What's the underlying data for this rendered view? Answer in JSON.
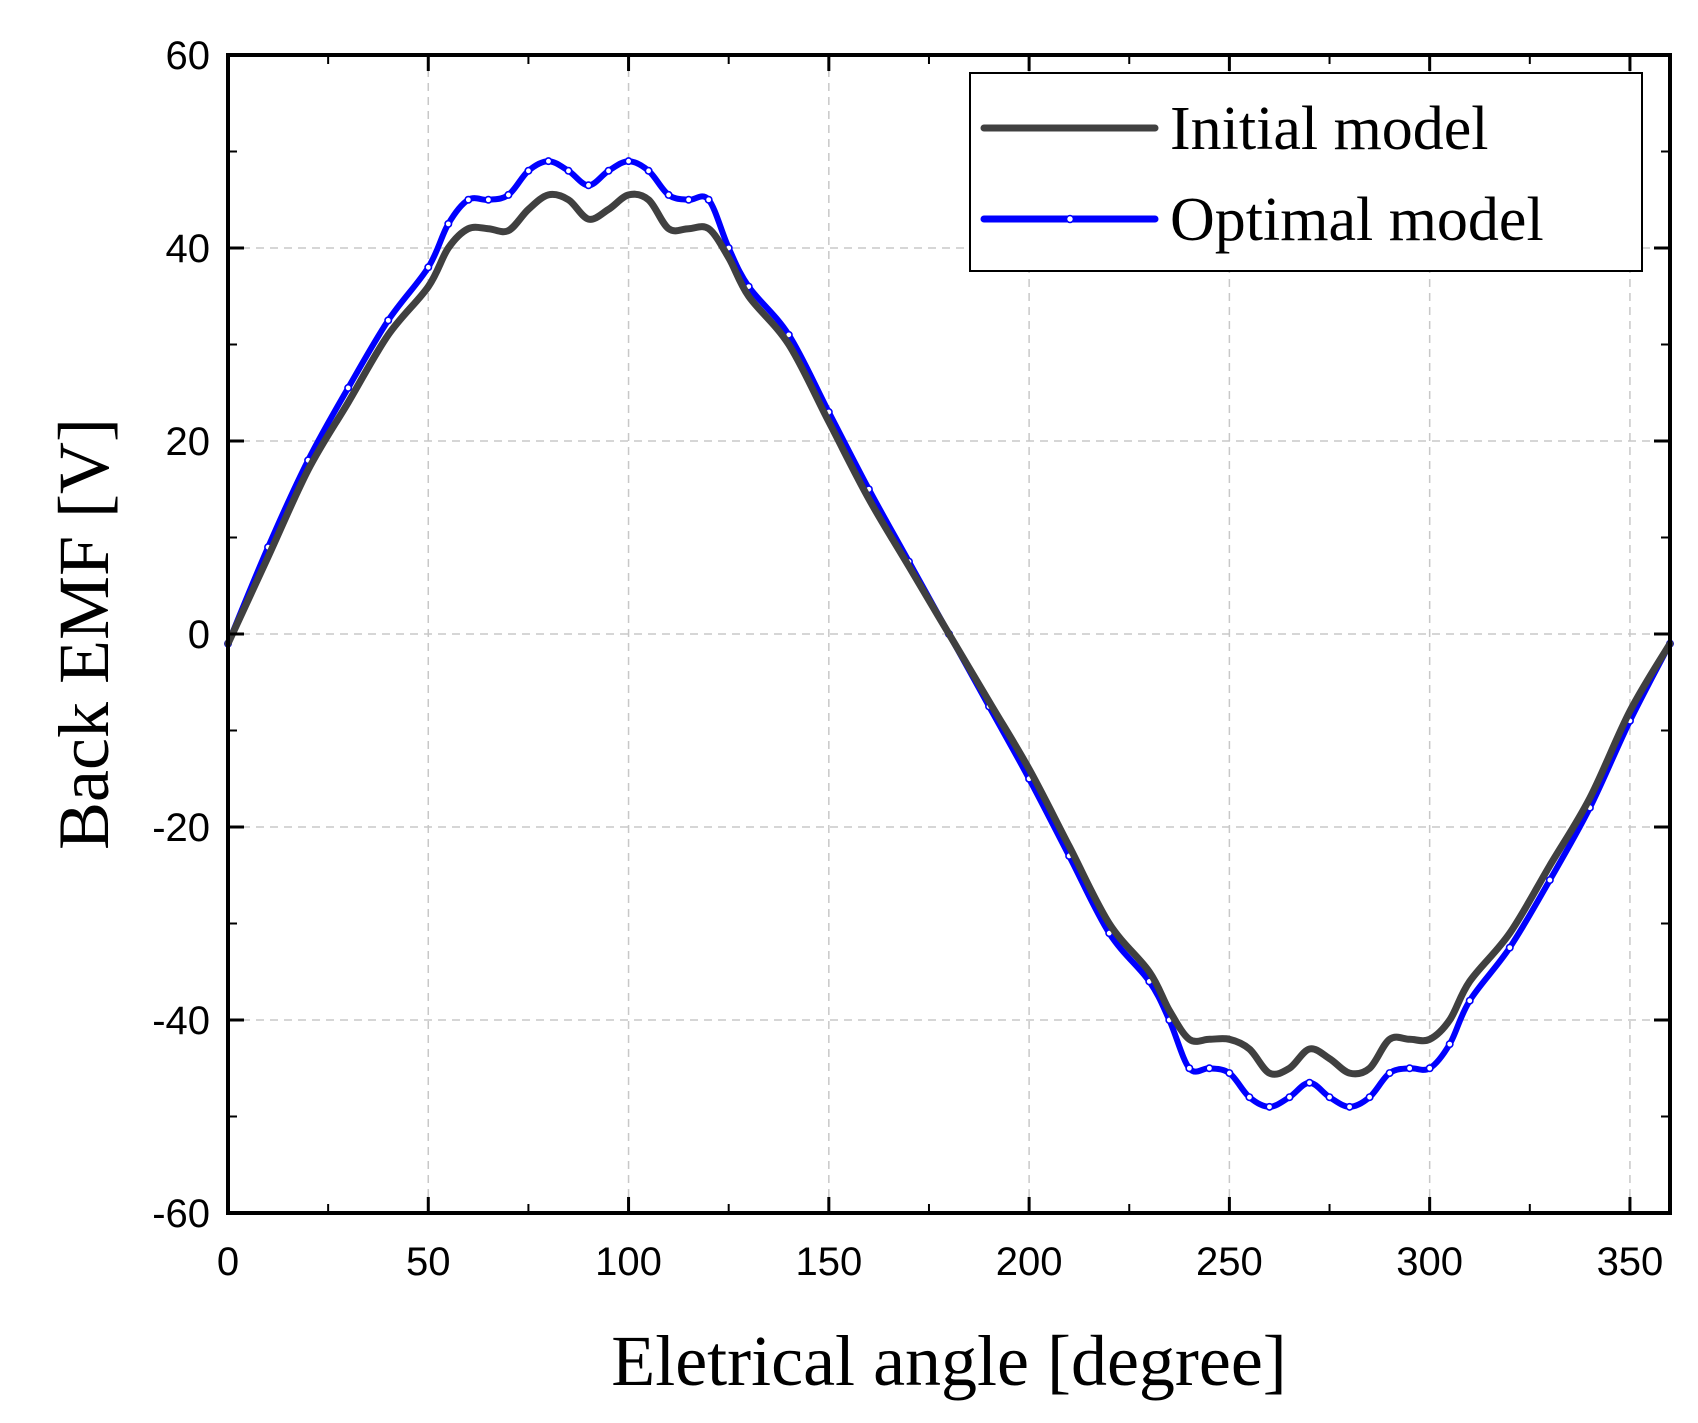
{
  "chart_data": {
    "type": "line",
    "title": "",
    "xlabel": "Eletrical angle [degree]",
    "ylabel": "Back EMF [V]",
    "xlim": [
      0,
      360
    ],
    "ylim": [
      -60,
      60
    ],
    "x_ticks": [
      0,
      50,
      100,
      150,
      200,
      250,
      300,
      350
    ],
    "x_tick_labels": [
      "0",
      "50",
      "100",
      "150",
      "200",
      "250",
      "300",
      "350"
    ],
    "y_ticks": [
      -60,
      -40,
      -20,
      0,
      20,
      40,
      60
    ],
    "y_tick_labels": [
      "-60",
      "-40",
      "-20",
      "0",
      "20",
      "40",
      "60"
    ],
    "grid": true,
    "legend_position": "top-right",
    "series": [
      {
        "name": "Initial model",
        "color": "#404040",
        "marker": "none",
        "x": [
          0,
          10,
          20,
          30,
          40,
          50,
          55,
          60,
          65,
          70,
          75,
          80,
          85,
          90,
          95,
          100,
          105,
          110,
          115,
          120,
          125,
          130,
          140,
          150,
          160,
          170,
          180,
          190,
          200,
          210,
          220,
          230,
          235,
          240,
          245,
          250,
          255,
          260,
          265,
          270,
          275,
          280,
          285,
          290,
          295,
          300,
          305,
          310,
          320,
          330,
          340,
          350,
          360
        ],
        "y": [
          -1,
          8,
          17,
          24,
          31,
          36,
          40,
          42,
          42,
          41.8,
          44,
          45.5,
          45,
          43,
          44,
          45.5,
          45,
          42,
          42,
          42,
          39,
          35,
          30,
          22,
          14,
          7,
          0,
          -7,
          -14,
          -22,
          -30,
          -35,
          -39,
          -42,
          -42,
          -42,
          -43,
          -45.5,
          -45,
          -43,
          -44,
          -45.5,
          -45,
          -42,
          -42,
          -42,
          -40,
          -36,
          -31,
          -24,
          -17,
          -8,
          -1
        ]
      },
      {
        "name": "Optimal model",
        "color": "#0000ff",
        "marker": "circle",
        "x": [
          0,
          10,
          20,
          30,
          40,
          50,
          55,
          60,
          65,
          70,
          75,
          80,
          85,
          90,
          95,
          100,
          105,
          110,
          115,
          120,
          125,
          130,
          140,
          150,
          160,
          170,
          180,
          190,
          200,
          210,
          220,
          230,
          235,
          240,
          245,
          250,
          255,
          260,
          265,
          270,
          275,
          280,
          285,
          290,
          295,
          300,
          305,
          310,
          320,
          330,
          340,
          350,
          360
        ],
        "y": [
          -1,
          9,
          18,
          25.5,
          32.5,
          38,
          42.5,
          45,
          45,
          45.5,
          48,
          49,
          48,
          46.5,
          48,
          49,
          48,
          45.5,
          45,
          45,
          40,
          36,
          31,
          23,
          15,
          7.5,
          0,
          -7.5,
          -15,
          -23,
          -31,
          -36,
          -40,
          -45,
          -45,
          -45.5,
          -48,
          -49,
          -48,
          -46.5,
          -48,
          -49,
          -48,
          -45.5,
          -45,
          -45,
          -42.5,
          -38,
          -32.5,
          -25.5,
          -18,
          -9,
          -1
        ]
      }
    ]
  }
}
